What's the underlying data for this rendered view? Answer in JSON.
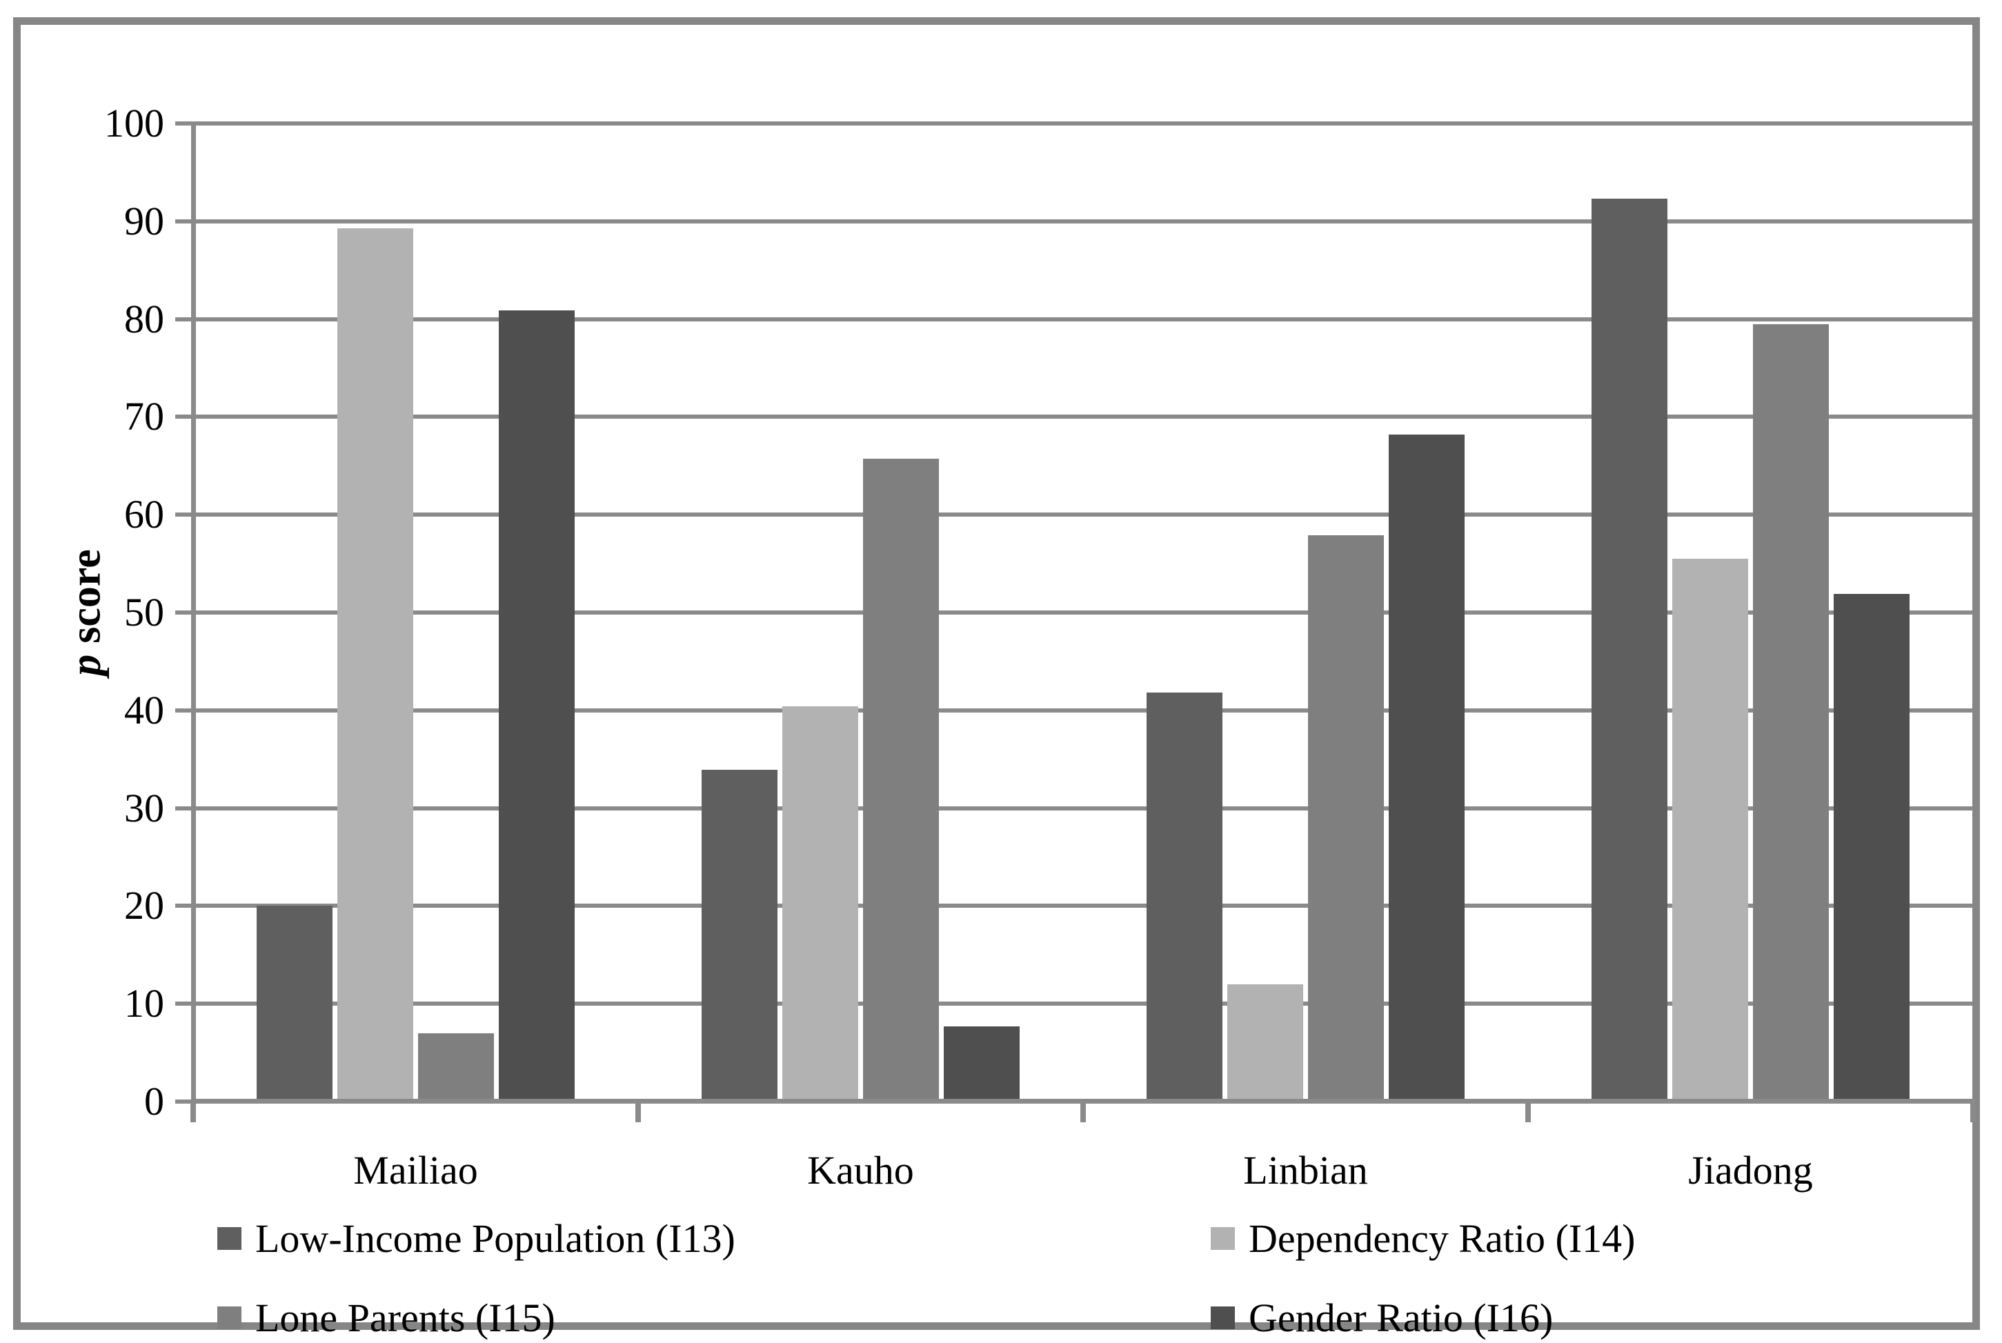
{
  "chart_data": {
    "type": "bar",
    "title": "",
    "ylabel_italic": "p",
    "ylabel_rest": "score",
    "ylim": [
      0,
      100
    ],
    "yticks": [
      0,
      10,
      20,
      30,
      40,
      50,
      60,
      70,
      80,
      90,
      100
    ],
    "grid": "horizontal",
    "legend_position": "bottom-two-columns",
    "categories": [
      "Mailiao",
      "Kauho",
      "Linbian",
      "Jiadong"
    ],
    "series": [
      {
        "name": "Low-Income Population (I13)",
        "color": "#5f5f5f",
        "values": [
          20.0,
          33.9,
          41.8,
          92.3
        ]
      },
      {
        "name": "Dependency Ratio (I14)",
        "color": "#b2b2b2",
        "values": [
          89.3,
          40.4,
          12.0,
          55.5
        ]
      },
      {
        "name": "Lone Parents (I15)",
        "color": "#7f7f7f",
        "values": [
          7.0,
          65.7,
          57.9,
          79.5
        ]
      },
      {
        "name": "Gender Ratio (I16)",
        "color": "#4f4f4f",
        "values": [
          80.9,
          7.7,
          68.2,
          51.9
        ]
      }
    ],
    "gridline_color": "#8a8a8a",
    "axis_color": "#8a8a8a",
    "frame_border_color": "#868686"
  }
}
